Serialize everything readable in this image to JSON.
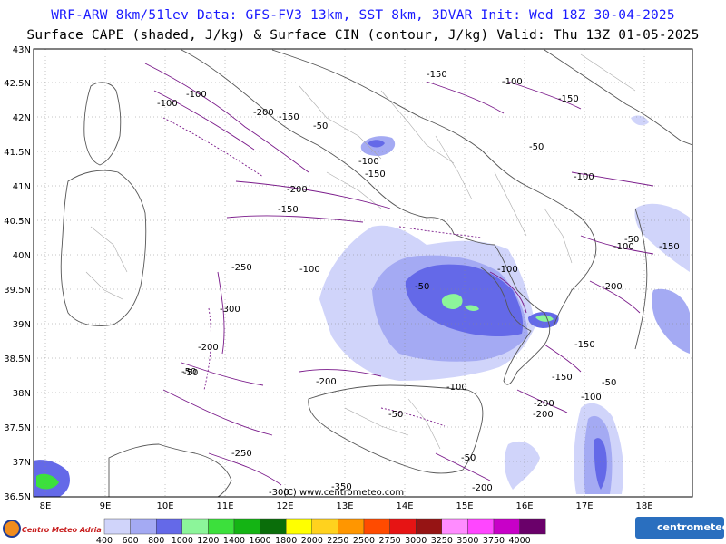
{
  "title": {
    "line1": "WRF-ARW 8km/51lev  Data: GFS-FV3 13km, SST 8km, 3DVAR  Init: Wed 18Z 30-04-2025",
    "line2": "Surface CAPE (shaded, J/kg) & Surface CIN (contour, J/kg)  Valid: Thu 13Z 01-05-2025"
  },
  "axes": {
    "lat_labels": [
      "43N",
      "42.5N",
      "42N",
      "41.5N",
      "41N",
      "40.5N",
      "40N",
      "39.5N",
      "39N",
      "38.5N",
      "38N",
      "37.5N",
      "37N",
      "36.5N"
    ],
    "lon_labels": [
      "8E",
      "9E",
      "10E",
      "11E",
      "12E",
      "13E",
      "14E",
      "15E",
      "16E",
      "17E",
      "18E"
    ]
  },
  "cin_labels": [
    "-150",
    "-100",
    "-150",
    "-100",
    "-200",
    "-150",
    "-50",
    "-100",
    "-100",
    "-150",
    "-50",
    "-200",
    "-150",
    "-100",
    "-250",
    "-300",
    "-200",
    "-50",
    "-100",
    "-50",
    "-100",
    "-150",
    "-100",
    "-200",
    "-50",
    "-150",
    "-200",
    "-100",
    "-150",
    "-50",
    "-200",
    "-250",
    "-300",
    "-350",
    "-200",
    "-50",
    "-50",
    "-100",
    "-200",
    "-50"
  ],
  "credit": "(C) www.centrometeo.com",
  "legend": {
    "values": [
      "400",
      "600",
      "800",
      "1000",
      "1200",
      "1400",
      "1600",
      "1800",
      "2000",
      "2250",
      "2500",
      "2750",
      "3000",
      "3250",
      "3500",
      "3750",
      "4000"
    ],
    "colors": [
      "#d0d4fa",
      "#a4aaf3",
      "#6469e8",
      "#8cf59a",
      "#3ce03c",
      "#14b414",
      "#0a6e0a",
      "#ffff00",
      "#ffd21e",
      "#ff9600",
      "#ff4b00",
      "#e61414",
      "#961414",
      "#ff8cff",
      "#ff46ff",
      "#c800c8",
      "#6a006a"
    ]
  },
  "logos": {
    "left": "Centro Meteo Adriatico",
    "right": "centrometeo"
  }
}
